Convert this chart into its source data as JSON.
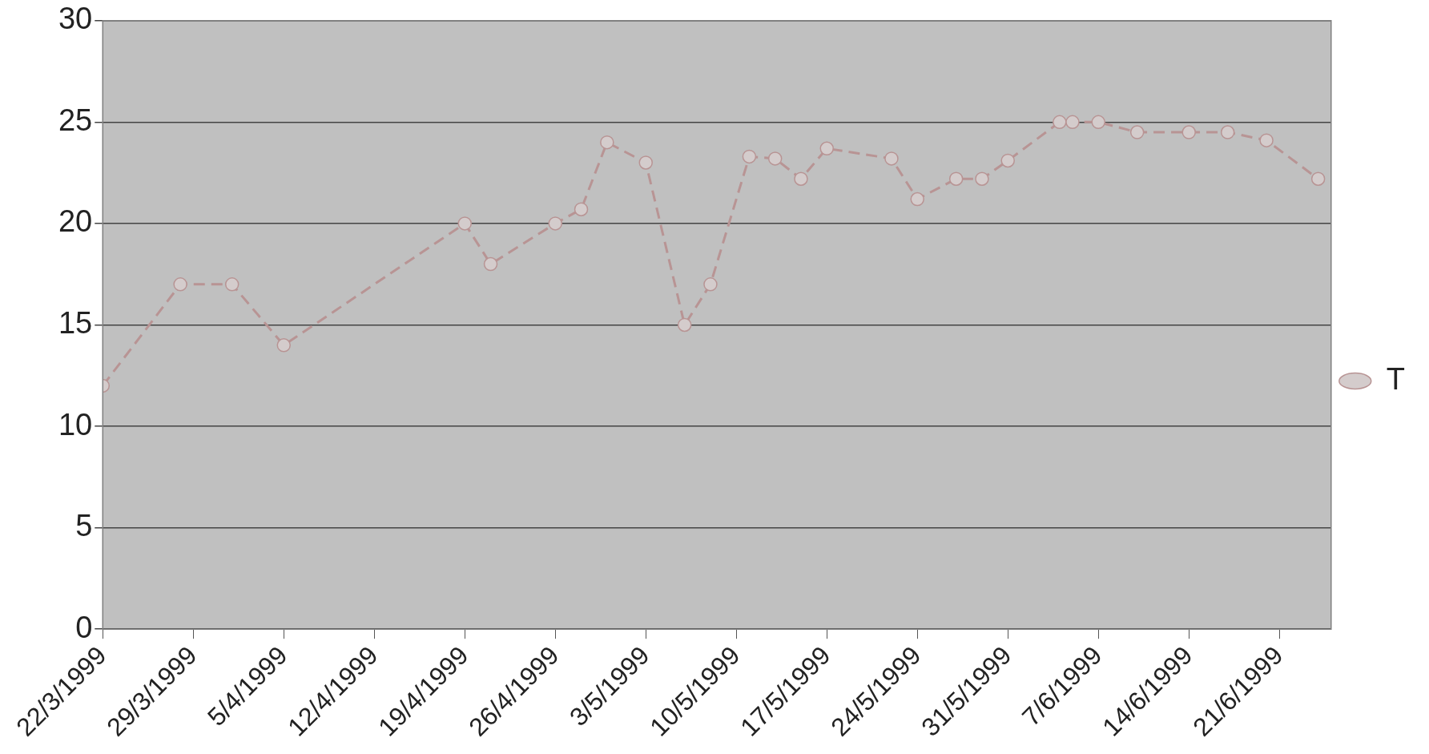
{
  "chart_data": {
    "type": "line",
    "x": [
      "1999-03-22",
      "1999-03-28",
      "1999-04-01",
      "1999-04-05",
      "1999-04-19",
      "1999-04-21",
      "1999-04-26",
      "1999-04-28",
      "1999-04-30",
      "1999-05-03",
      "1999-05-06",
      "1999-05-08",
      "1999-05-11",
      "1999-05-13",
      "1999-05-15",
      "1999-05-17",
      "1999-05-22",
      "1999-05-24",
      "1999-05-27",
      "1999-05-29",
      "1999-05-31",
      "1999-06-04",
      "1999-06-05",
      "1999-06-07",
      "1999-06-10",
      "1999-06-14",
      "1999-06-17",
      "1999-06-20",
      "1999-06-24"
    ],
    "series": [
      {
        "name": "T",
        "color": "#b89494",
        "values": [
          12,
          17,
          17,
          14,
          20,
          18,
          20,
          20.7,
          24,
          23,
          15,
          17,
          23.3,
          23.2,
          22.2,
          23.7,
          23.2,
          21.2,
          22.2,
          22.2,
          23.1,
          25,
          25,
          25,
          24.5,
          24.5,
          24.5,
          24.1,
          22.2
        ]
      }
    ],
    "xlim": [
      "1999-03-22",
      "1999-06-25"
    ],
    "xticks": [
      {
        "value": "1999-03-22",
        "label": "22/3/1999"
      },
      {
        "value": "1999-03-29",
        "label": "29/3/1999"
      },
      {
        "value": "1999-04-05",
        "label": "5/4/1999"
      },
      {
        "value": "1999-04-12",
        "label": "12/4/1999"
      },
      {
        "value": "1999-04-19",
        "label": "19/4/1999"
      },
      {
        "value": "1999-04-26",
        "label": "26/4/1999"
      },
      {
        "value": "1999-05-03",
        "label": "3/5/1999"
      },
      {
        "value": "1999-05-10",
        "label": "10/5/1999"
      },
      {
        "value": "1999-05-17",
        "label": "17/5/1999"
      },
      {
        "value": "1999-05-24",
        "label": "24/5/1999"
      },
      {
        "value": "1999-05-31",
        "label": "31/5/1999"
      },
      {
        "value": "1999-06-07",
        "label": "7/6/1999"
      },
      {
        "value": "1999-06-14",
        "label": "14/6/1999"
      },
      {
        "value": "1999-06-21",
        "label": "21/6/1999"
      }
    ],
    "ylim": [
      0,
      30
    ],
    "yticks": [
      0,
      5,
      10,
      15,
      20,
      25,
      30
    ],
    "grid": "y",
    "legend": "right",
    "marker": "circle",
    "line_style": "dashed"
  }
}
